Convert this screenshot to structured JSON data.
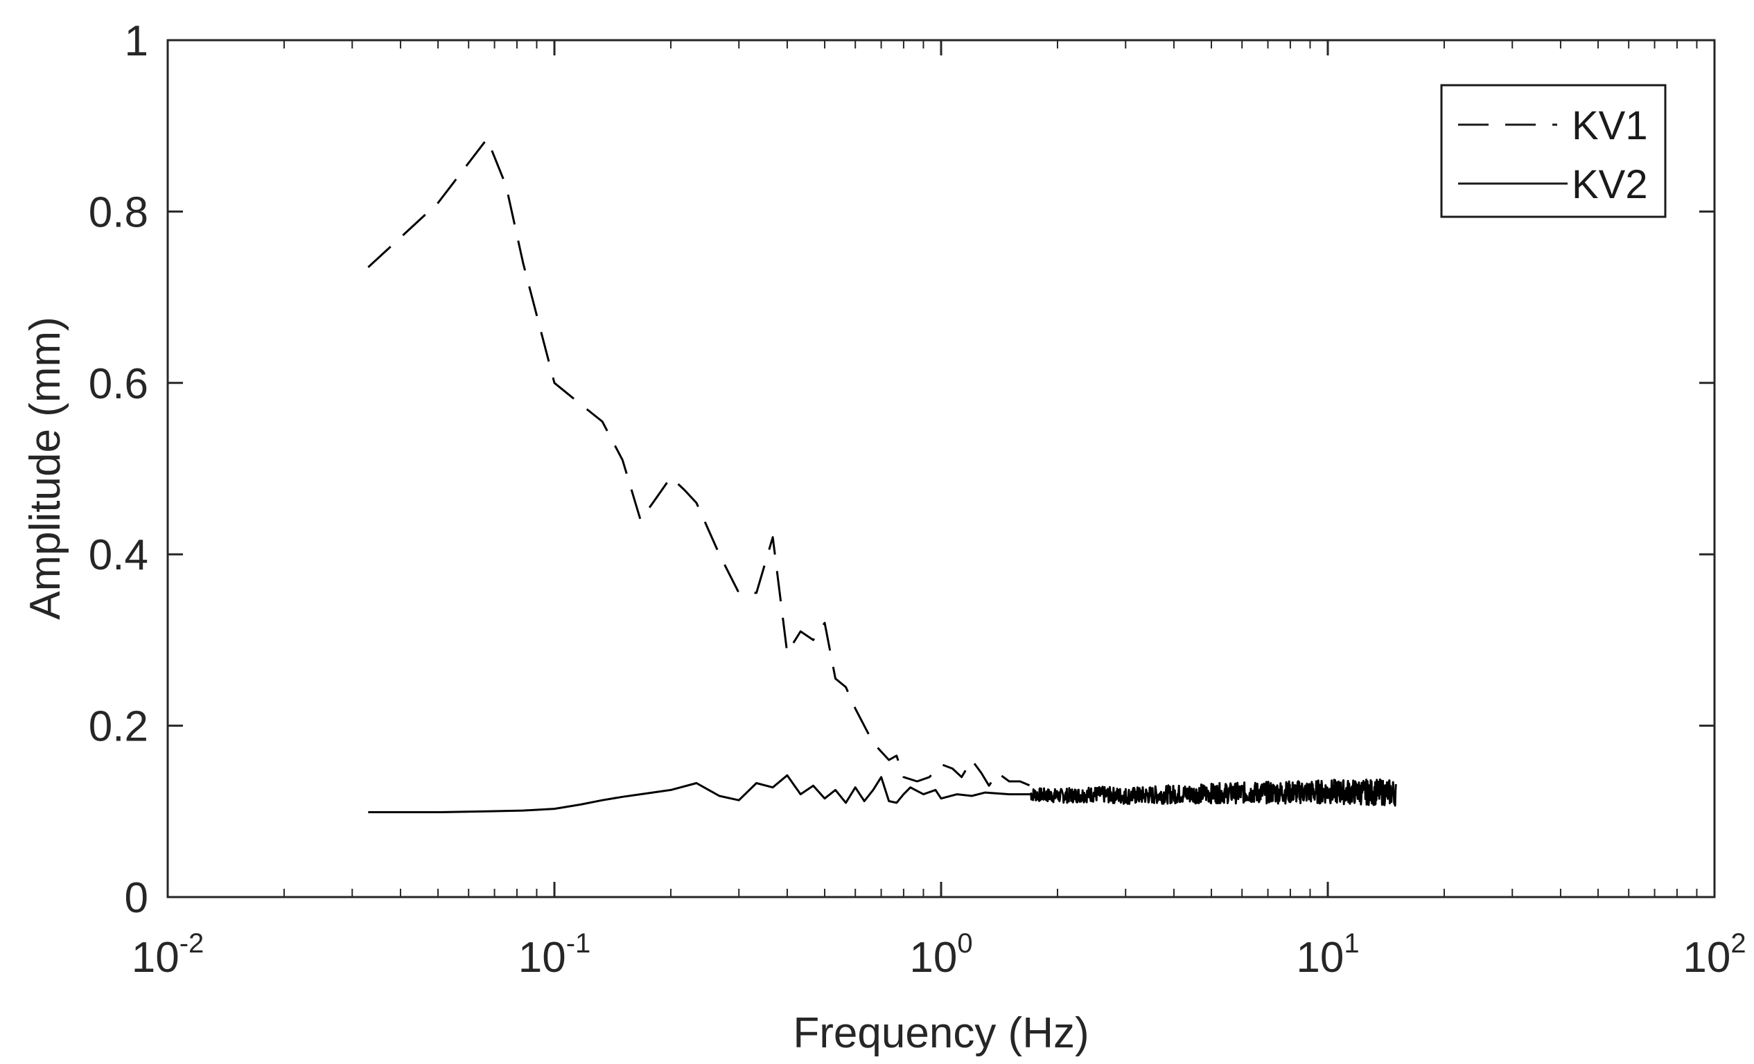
{
  "chart_data": {
    "type": "line",
    "xscale": "log",
    "xlabel": "Frequency (Hz)",
    "ylabel": "Amplitude (mm)",
    "xlim": [
      0.01,
      100
    ],
    "ylim": [
      0,
      1
    ],
    "x_ticks": [
      {
        "base": "10",
        "exp": "-2",
        "value": 0.01
      },
      {
        "base": "10",
        "exp": "-1",
        "value": 0.1
      },
      {
        "base": "10",
        "exp": "0",
        "value": 1
      },
      {
        "base": "10",
        "exp": "1",
        "value": 10
      },
      {
        "base": "10",
        "exp": "2",
        "value": 100
      }
    ],
    "y_ticks": [
      {
        "label": "0",
        "value": 0
      },
      {
        "label": "0.2",
        "value": 0.2
      },
      {
        "label": "0.4",
        "value": 0.4
      },
      {
        "label": "0.6",
        "value": 0.6
      },
      {
        "label": "0.8",
        "value": 0.8
      },
      {
        "label": "1",
        "value": 1
      }
    ],
    "legend": {
      "position": "top-right",
      "entries": [
        "KV1",
        "KV2"
      ]
    },
    "series": [
      {
        "name": "KV1",
        "style": "dashed",
        "color": "#000000",
        "points": [
          [
            0.033,
            0.735
          ],
          [
            0.05,
            0.81
          ],
          [
            0.067,
            0.885
          ],
          [
            0.075,
            0.83
          ],
          [
            0.083,
            0.74
          ],
          [
            0.1,
            0.6
          ],
          [
            0.117,
            0.575
          ],
          [
            0.133,
            0.555
          ],
          [
            0.15,
            0.51
          ],
          [
            0.167,
            0.44
          ],
          [
            0.183,
            0.465
          ],
          [
            0.2,
            0.49
          ],
          [
            0.217,
            0.475
          ],
          [
            0.233,
            0.46
          ],
          [
            0.267,
            0.4
          ],
          [
            0.3,
            0.355
          ],
          [
            0.333,
            0.355
          ],
          [
            0.367,
            0.42
          ],
          [
            0.4,
            0.285
          ],
          [
            0.433,
            0.31
          ],
          [
            0.467,
            0.3
          ],
          [
            0.5,
            0.32
          ],
          [
            0.533,
            0.255
          ],
          [
            0.567,
            0.245
          ],
          [
            0.6,
            0.22
          ],
          [
            0.667,
            0.18
          ],
          [
            0.733,
            0.16
          ],
          [
            0.767,
            0.165
          ],
          [
            0.8,
            0.14
          ],
          [
            0.867,
            0.135
          ],
          [
            0.933,
            0.14
          ],
          [
            1.0,
            0.155
          ],
          [
            1.07,
            0.15
          ],
          [
            1.13,
            0.14
          ],
          [
            1.2,
            0.16
          ],
          [
            1.27,
            0.145
          ],
          [
            1.33,
            0.13
          ],
          [
            1.4,
            0.145
          ],
          [
            1.5,
            0.135
          ],
          [
            1.6,
            0.135
          ],
          [
            1.7,
            0.13
          ],
          [
            1.8,
            0.125
          ]
        ]
      },
      {
        "name": "KV2",
        "style": "solid",
        "color": "#000000",
        "points": [
          [
            0.033,
            0.099
          ],
          [
            0.05,
            0.099
          ],
          [
            0.067,
            0.1
          ],
          [
            0.083,
            0.101
          ],
          [
            0.1,
            0.103
          ],
          [
            0.117,
            0.108
          ],
          [
            0.133,
            0.113
          ],
          [
            0.15,
            0.117
          ],
          [
            0.167,
            0.12
          ],
          [
            0.2,
            0.125
          ],
          [
            0.233,
            0.133
          ],
          [
            0.267,
            0.118
          ],
          [
            0.3,
            0.113
          ],
          [
            0.333,
            0.133
          ],
          [
            0.367,
            0.128
          ],
          [
            0.4,
            0.142
          ],
          [
            0.433,
            0.12
          ],
          [
            0.467,
            0.13
          ],
          [
            0.5,
            0.115
          ],
          [
            0.533,
            0.125
          ],
          [
            0.567,
            0.11
          ],
          [
            0.6,
            0.128
          ],
          [
            0.633,
            0.112
          ],
          [
            0.667,
            0.125
          ],
          [
            0.7,
            0.14
          ],
          [
            0.733,
            0.112
          ],
          [
            0.767,
            0.11
          ],
          [
            0.8,
            0.12
          ],
          [
            0.833,
            0.128
          ],
          [
            0.9,
            0.12
          ],
          [
            0.967,
            0.125
          ],
          [
            1.0,
            0.115
          ],
          [
            1.1,
            0.12
          ],
          [
            1.2,
            0.118
          ],
          [
            1.3,
            0.122
          ],
          [
            1.5,
            0.12
          ],
          [
            1.7,
            0.12
          ],
          [
            2.0,
            0.118
          ],
          [
            2.5,
            0.12
          ],
          [
            3.0,
            0.118
          ],
          [
            4.0,
            0.12
          ],
          [
            5.0,
            0.121
          ],
          [
            7.0,
            0.122
          ],
          [
            10.0,
            0.123
          ],
          [
            15.0,
            0.122
          ]
        ],
        "noise": {
          "x_from": 1.7,
          "x_to": 15.0,
          "amplitude": 0.013
        }
      }
    ]
  }
}
